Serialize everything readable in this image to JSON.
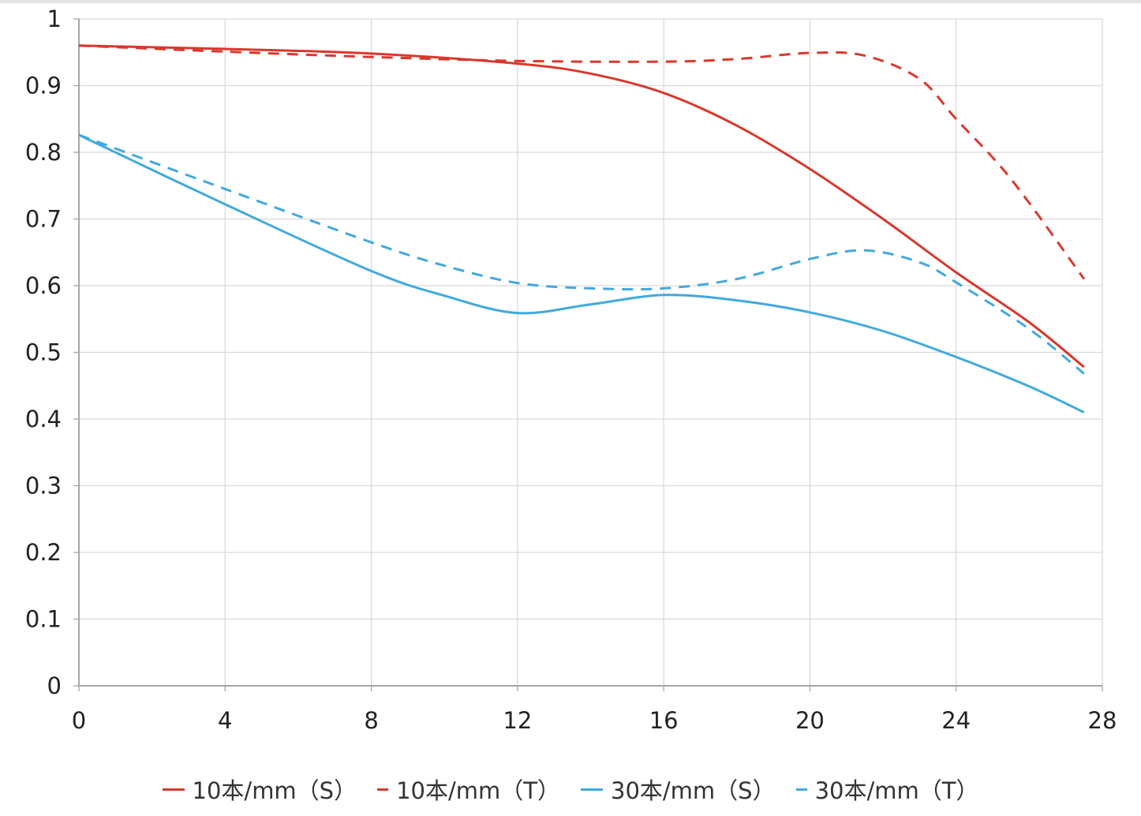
{
  "chart_data": {
    "type": "line",
    "title": "",
    "xlabel": "",
    "ylabel": "",
    "xlim": [
      0,
      28
    ],
    "ylim": [
      0,
      1
    ],
    "x_ticks": [
      "0",
      "4",
      "8",
      "12",
      "16",
      "20",
      "24",
      "28"
    ],
    "y_ticks": [
      "0",
      "0.1",
      "0.2",
      "0.3",
      "0.4",
      "0.5",
      "0.6",
      "0.7",
      "0.8",
      "0.9",
      "1"
    ],
    "grid": true,
    "legend_position": "bottom",
    "series": [
      {
        "name": "10本/mm（S）",
        "color": "#d9382c",
        "dash": "solid",
        "points": [
          [
            0,
            0.96
          ],
          [
            4,
            0.955
          ],
          [
            8,
            0.948
          ],
          [
            12,
            0.933
          ],
          [
            14,
            0.918
          ],
          [
            16,
            0.889
          ],
          [
            18,
            0.84
          ],
          [
            20,
            0.775
          ],
          [
            22,
            0.7
          ],
          [
            24,
            0.62
          ],
          [
            26,
            0.545
          ],
          [
            27.5,
            0.478
          ]
        ]
      },
      {
        "name": "10本/mm（T）",
        "color": "#d9382c",
        "dash": "dashed",
        "points": [
          [
            0,
            0.96
          ],
          [
            4,
            0.951
          ],
          [
            8,
            0.943
          ],
          [
            12,
            0.937
          ],
          [
            16,
            0.936
          ],
          [
            18,
            0.94
          ],
          [
            20,
            0.949
          ],
          [
            21.5,
            0.945
          ],
          [
            23,
            0.91
          ],
          [
            24,
            0.85
          ],
          [
            25.5,
            0.76
          ],
          [
            27.5,
            0.61
          ]
        ]
      },
      {
        "name": "30本/mm（S）",
        "color": "#41a9dd",
        "dash": "solid",
        "points": [
          [
            0,
            0.826
          ],
          [
            4,
            0.722
          ],
          [
            8,
            0.622
          ],
          [
            10,
            0.585
          ],
          [
            12,
            0.559
          ],
          [
            14,
            0.572
          ],
          [
            16,
            0.586
          ],
          [
            18,
            0.578
          ],
          [
            20,
            0.56
          ],
          [
            22,
            0.532
          ],
          [
            24,
            0.493
          ],
          [
            26,
            0.449
          ],
          [
            27.5,
            0.41
          ]
        ]
      },
      {
        "name": "30本/mm（T）",
        "color": "#41a9dd",
        "dash": "dashed",
        "points": [
          [
            0,
            0.826
          ],
          [
            4,
            0.745
          ],
          [
            8,
            0.665
          ],
          [
            10,
            0.63
          ],
          [
            12,
            0.604
          ],
          [
            14,
            0.596
          ],
          [
            16,
            0.596
          ],
          [
            18,
            0.61
          ],
          [
            20,
            0.64
          ],
          [
            21.5,
            0.653
          ],
          [
            23,
            0.635
          ],
          [
            24,
            0.605
          ],
          [
            26,
            0.535
          ],
          [
            27.5,
            0.468
          ]
        ]
      }
    ]
  }
}
